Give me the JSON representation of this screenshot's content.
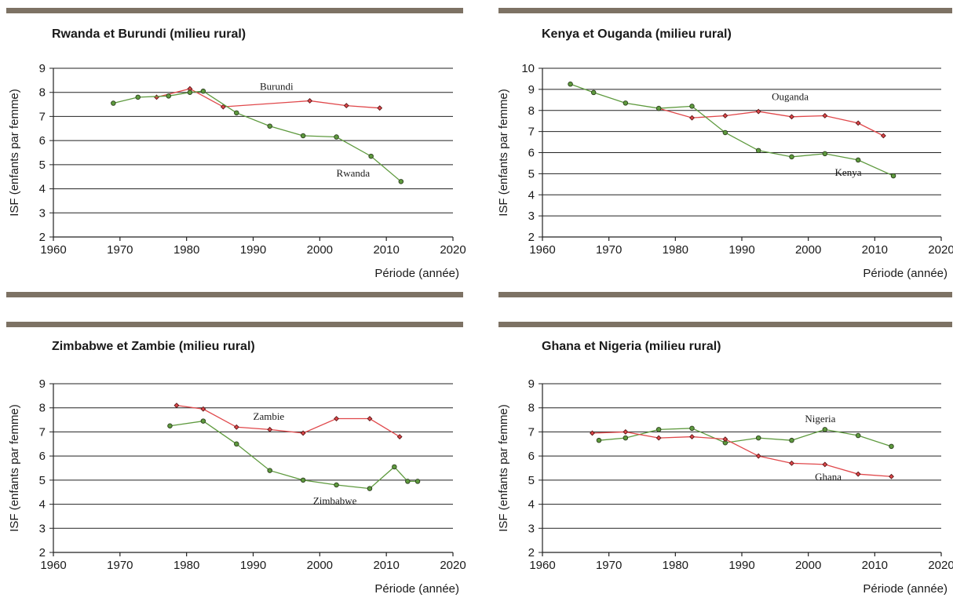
{
  "chart_data": [
    {
      "type": "line",
      "title": "Rwanda et Burundi (milieu rural)",
      "xlabel": "Période (année)",
      "ylabel": "ISF (enfants par femme)",
      "xlim": [
        1960,
        2020
      ],
      "ylim": [
        2,
        9
      ],
      "x_ticks": [
        "1960",
        "1970",
        "1980",
        "1990",
        "2000",
        "2010",
        "2020"
      ],
      "y_ticks": [
        "2",
        "3",
        "4",
        "5",
        "6",
        "7",
        "8",
        "9"
      ],
      "grid": true,
      "series": [
        {
          "name": "Burundi",
          "color": "#e0484b",
          "marker": "diamond",
          "x": [
            1975.5,
            1980.5,
            1985.5,
            1998.5,
            2004,
            2009
          ],
          "y": [
            7.8,
            8.15,
            7.4,
            7.65,
            7.45,
            7.35
          ],
          "label_at": [
            1991,
            8.1
          ]
        },
        {
          "name": "Rwanda",
          "color": "#5e9a3e",
          "marker": "circle",
          "x": [
            1969,
            1972.7,
            1977.3,
            1980.5,
            1982.5,
            1987.5,
            1992.5,
            1997.5,
            2002.5,
            2007.7,
            2012.2
          ],
          "y": [
            7.55,
            7.8,
            7.85,
            8.0,
            8.05,
            7.15,
            6.6,
            6.2,
            6.15,
            5.35,
            4.3
          ],
          "label_at": [
            2002.5,
            4.5
          ]
        }
      ]
    },
    {
      "type": "line",
      "title": "Kenya et Ouganda (milieu rural)",
      "xlabel": "Période (année)",
      "ylabel": "ISF (enfants par femme)",
      "xlim": [
        1960,
        2020
      ],
      "ylim": [
        2,
        10
      ],
      "x_ticks": [
        "1960",
        "1970",
        "1980",
        "1990",
        "2000",
        "2010",
        "2020"
      ],
      "y_ticks": [
        "2",
        "3",
        "4",
        "5",
        "6",
        "7",
        "8",
        "9",
        "10"
      ],
      "grid": true,
      "series": [
        {
          "name": "Ouganda",
          "color": "#e0484b",
          "marker": "diamond",
          "x": [
            1977.5,
            1982.5,
            1987.5,
            1992.5,
            1997.5,
            2002.5,
            2007.5,
            2011.3
          ],
          "y": [
            8.1,
            7.65,
            7.75,
            7.95,
            7.7,
            7.75,
            7.4,
            6.8
          ],
          "label_at": [
            1994.5,
            8.5
          ]
        },
        {
          "name": "Kenya",
          "color": "#5e9a3e",
          "marker": "circle",
          "x": [
            1964.2,
            1967.7,
            1972.5,
            1977.5,
            1982.5,
            1987.5,
            1992.5,
            1997.5,
            2002.5,
            2007.5,
            2012.8
          ],
          "y": [
            9.25,
            8.85,
            8.35,
            8.1,
            8.2,
            6.95,
            6.1,
            5.8,
            5.95,
            5.65,
            4.9
          ],
          "label_at": [
            2004,
            4.9
          ]
        }
      ]
    },
    {
      "type": "line",
      "title": "Zimbabwe et Zambie (milieu rural)",
      "xlabel": "Période (année)",
      "ylabel": "ISF (enfants par femme)",
      "xlim": [
        1960,
        2020
      ],
      "ylim": [
        2,
        9
      ],
      "x_ticks": [
        "1960",
        "1970",
        "1980",
        "1990",
        "2000",
        "2010",
        "2020"
      ],
      "y_ticks": [
        "2",
        "3",
        "4",
        "5",
        "6",
        "7",
        "8",
        "9"
      ],
      "grid": true,
      "series": [
        {
          "name": "Zambie",
          "color": "#e0484b",
          "marker": "diamond",
          "x": [
            1978.5,
            1982.5,
            1987.5,
            1992.5,
            1997.5,
            2002.5,
            2007.5,
            2012
          ],
          "y": [
            8.1,
            7.95,
            7.2,
            7.1,
            6.95,
            7.55,
            7.55,
            6.8
          ],
          "label_at": [
            1990,
            7.5
          ]
        },
        {
          "name": "Zimbabwe",
          "color": "#5e9a3e",
          "marker": "circle",
          "x": [
            1977.5,
            1982.5,
            1987.5,
            1992.5,
            1997.5,
            2002.5,
            2007.5,
            2011.2,
            2013.2,
            2014.7
          ],
          "y": [
            7.25,
            7.45,
            6.5,
            5.4,
            5.0,
            4.8,
            4.65,
            5.55,
            4.95,
            4.95
          ],
          "label_at": [
            1999,
            4.0
          ]
        }
      ]
    },
    {
      "type": "line",
      "title": "Ghana et Nigeria (milieu rural)",
      "xlabel": "Période (année)",
      "ylabel": "ISF (enfants par femme)",
      "xlim": [
        1960,
        2020
      ],
      "ylim": [
        2,
        9
      ],
      "x_ticks": [
        "1960",
        "1970",
        "1980",
        "1990",
        "2000",
        "2010",
        "2020"
      ],
      "y_ticks": [
        "2",
        "3",
        "4",
        "5",
        "6",
        "7",
        "8",
        "9"
      ],
      "grid": true,
      "series": [
        {
          "name": "Nigeria",
          "color": "#5e9a3e",
          "marker": "circle",
          "x": [
            1968.5,
            1972.5,
            1977.5,
            1982.5,
            1987.5,
            1992.5,
            1997.5,
            2002.5,
            2007.5,
            2012.5
          ],
          "y": [
            6.65,
            6.75,
            7.1,
            7.15,
            6.55,
            6.75,
            6.65,
            7.1,
            6.85,
            6.4
          ],
          "label_at": [
            1999.5,
            7.4
          ]
        },
        {
          "name": "Ghana",
          "color": "#e0484b",
          "marker": "diamond",
          "x": [
            1967.5,
            1972.5,
            1977.5,
            1982.5,
            1987.5,
            1992.5,
            1997.5,
            2002.5,
            2007.5,
            2012.5
          ],
          "y": [
            6.95,
            7.0,
            6.75,
            6.8,
            6.7,
            6.0,
            5.7,
            5.65,
            5.25,
            5.15
          ],
          "label_at": [
            2001,
            5.0
          ]
        }
      ]
    }
  ]
}
